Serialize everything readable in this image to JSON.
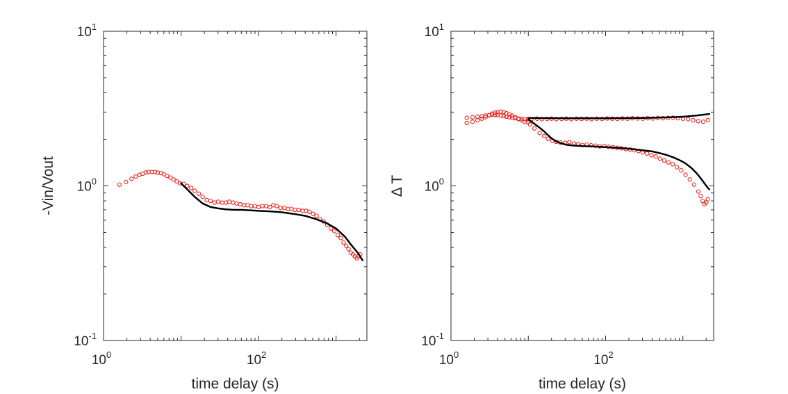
{
  "colors": {
    "marker": "#e8231f",
    "fit": "#000000",
    "axes": "#262626"
  },
  "chart_data": [
    {
      "type": "scatter",
      "xlabel": "time delay (s)",
      "ylabel": "-Vin/Vout",
      "xscale": "log",
      "yscale": "log",
      "xlim": [
        1,
        2500
      ],
      "ylim": [
        0.1,
        10
      ],
      "x_ticks": [
        {
          "base": "10",
          "exp": "0",
          "value": 1
        },
        {
          "base": "10",
          "exp": "2",
          "value": 100
        }
      ],
      "y_ticks": [
        {
          "base": "10",
          "exp": "-1",
          "value": 0.1
        },
        {
          "base": "10",
          "exp": "0",
          "value": 1
        },
        {
          "base": "10",
          "exp": "1",
          "value": 10
        }
      ],
      "series": [
        {
          "kind": "markers",
          "x": [
            1.6,
            1.95,
            2.3,
            2.6,
            2.9,
            3.2,
            3.5,
            3.8,
            4.2,
            4.6,
            5.0,
            5.5,
            6.0,
            6.6,
            7.3,
            8.0,
            8.8,
            9.7,
            10.8,
            12.0,
            13.5,
            15,
            17,
            19,
            21.5,
            24,
            27,
            30,
            34,
            38,
            42,
            47,
            52,
            58,
            65,
            72,
            80,
            90,
            100,
            112,
            125,
            140,
            155,
            172,
            192,
            215,
            240,
            265,
            295,
            330,
            370,
            410,
            455,
            505,
            560,
            620,
            690,
            770,
            860,
            950,
            1050,
            1150,
            1250,
            1350,
            1450,
            1550,
            1650,
            1750,
            1850,
            1950,
            2050
          ],
          "y": [
            1.02,
            1.06,
            1.11,
            1.15,
            1.18,
            1.2,
            1.22,
            1.23,
            1.23,
            1.23,
            1.22,
            1.21,
            1.19,
            1.16,
            1.13,
            1.1,
            1.07,
            1.04,
            1.03,
            1.0,
            0.97,
            0.93,
            0.89,
            0.85,
            0.81,
            0.8,
            0.78,
            0.79,
            0.78,
            0.78,
            0.79,
            0.78,
            0.77,
            0.76,
            0.75,
            0.75,
            0.74,
            0.74,
            0.73,
            0.74,
            0.74,
            0.73,
            0.75,
            0.74,
            0.72,
            0.72,
            0.71,
            0.71,
            0.7,
            0.7,
            0.69,
            0.69,
            0.68,
            0.66,
            0.64,
            0.61,
            0.59,
            0.56,
            0.53,
            0.51,
            0.48,
            0.46,
            0.43,
            0.41,
            0.39,
            0.37,
            0.36,
            0.35,
            0.34,
            0.35,
            0.36
          ]
        },
        {
          "kind": "line",
          "x": [
            10,
            12,
            15,
            19,
            24,
            30,
            38,
            48,
            60,
            80,
            100,
            140,
            200,
            280,
            400,
            550,
            750,
            1000,
            1300,
            1600,
            1900,
            2200
          ],
          "y": [
            1.04,
            0.95,
            0.85,
            0.77,
            0.73,
            0.715,
            0.705,
            0.7,
            0.7,
            0.695,
            0.69,
            0.685,
            0.675,
            0.66,
            0.64,
            0.61,
            0.575,
            0.53,
            0.47,
            0.41,
            0.37,
            0.33
          ]
        }
      ]
    },
    {
      "type": "scatter",
      "xlabel": "time delay (s)",
      "ylabel": "Δ T",
      "xscale": "log",
      "yscale": "log",
      "xlim": [
        1,
        2500
      ],
      "ylim": [
        0.1,
        10
      ],
      "x_ticks": [
        {
          "base": "10",
          "exp": "0",
          "value": 1
        },
        {
          "base": "10",
          "exp": "2",
          "value": 100
        }
      ],
      "y_ticks": [
        {
          "base": "10",
          "exp": "-1",
          "value": 0.1
        },
        {
          "base": "10",
          "exp": "0",
          "value": 1
        },
        {
          "base": "10",
          "exp": "1",
          "value": 10
        }
      ],
      "series": [
        {
          "kind": "markers",
          "x": [
            1.6,
            1.9,
            2.2,
            2.5,
            2.8,
            3.1,
            3.4,
            3.7,
            4.0,
            4.4,
            4.8,
            5.2,
            5.7,
            6.2,
            6.8,
            7.5,
            8.2,
            9.0,
            9.9,
            1.6,
            1.9,
            2.2,
            2.5,
            2.8,
            3.1,
            3.4,
            3.7,
            4.0,
            4.4,
            4.8,
            5.2,
            5.7,
            6.2,
            6.8,
            7.5,
            8.2,
            9.0,
            9.9
          ],
          "y": [
            2.55,
            2.6,
            2.66,
            2.72,
            2.78,
            2.86,
            2.93,
            2.98,
            3.0,
            3.02,
            3.0,
            2.95,
            2.9,
            2.85,
            2.78,
            2.7,
            2.65,
            2.6,
            2.58,
            2.75,
            2.78,
            2.8,
            2.82,
            2.85,
            2.87,
            2.88,
            2.88,
            2.87,
            2.85,
            2.83,
            2.8,
            2.78,
            2.76,
            2.74,
            2.72,
            2.72,
            2.7,
            2.7
          ]
        },
        {
          "kind": "markers",
          "x": [
            11,
            13,
            15,
            17.5,
            20,
            23,
            27,
            31,
            36,
            42,
            49,
            57,
            66,
            77,
            90,
            105,
            122,
            142,
            165,
            192,
            223,
            260,
            302,
            351,
            408,
            474,
            551,
            640,
            744,
            865,
            1005,
            1168,
            1357,
            1577,
            1833,
            2100
          ],
          "y": [
            2.7,
            2.72,
            2.7,
            2.71,
            2.72,
            2.7,
            2.71,
            2.72,
            2.7,
            2.72,
            2.71,
            2.72,
            2.7,
            2.72,
            2.71,
            2.73,
            2.72,
            2.71,
            2.73,
            2.72,
            2.74,
            2.73,
            2.72,
            2.74,
            2.73,
            2.75,
            2.74,
            2.75,
            2.76,
            2.74,
            2.72,
            2.7,
            2.66,
            2.62,
            2.6,
            2.66
          ]
        },
        {
          "kind": "markers",
          "x": [
            10.5,
            12,
            14,
            16,
            18,
            20.5,
            23,
            26,
            30,
            34,
            39,
            44,
            50,
            57,
            65,
            74,
            84,
            96,
            109,
            124,
            141,
            160,
            182,
            207,
            235,
            267,
            303,
            344,
            391,
            444,
            504,
            572,
            650,
            738,
            838,
            952,
            1081,
            1228,
            1394,
            1583,
            1700,
            1800,
            1900,
            2000,
            2100
          ],
          "y": [
            2.5,
            2.35,
            2.2,
            2.1,
            2.02,
            1.96,
            1.93,
            1.91,
            1.9,
            1.92,
            1.88,
            1.86,
            1.84,
            1.85,
            1.83,
            1.82,
            1.8,
            1.81,
            1.79,
            1.78,
            1.76,
            1.75,
            1.73,
            1.72,
            1.7,
            1.68,
            1.65,
            1.62,
            1.58,
            1.55,
            1.5,
            1.46,
            1.42,
            1.38,
            1.32,
            1.26,
            1.18,
            1.1,
            1.02,
            0.92,
            0.86,
            0.8,
            0.76,
            0.78,
            0.82
          ]
        },
        {
          "kind": "line",
          "x": [
            10,
            30,
            100,
            300,
            600,
            1000,
            1500,
            2200
          ],
          "y": [
            2.75,
            2.74,
            2.74,
            2.75,
            2.77,
            2.8,
            2.85,
            2.92
          ]
        },
        {
          "kind": "line",
          "x": [
            10,
            12,
            14,
            16,
            18,
            20,
            23,
            27,
            32,
            40,
            50,
            70,
            100,
            150,
            220,
            300,
            400,
            500,
            600,
            700,
            800,
            950,
            1100,
            1300,
            1500,
            1700,
            1900,
            2100,
            2200
          ],
          "y": [
            2.7,
            2.52,
            2.38,
            2.25,
            2.13,
            2.03,
            1.94,
            1.88,
            1.84,
            1.82,
            1.81,
            1.8,
            1.78,
            1.76,
            1.73,
            1.7,
            1.67,
            1.63,
            1.59,
            1.55,
            1.51,
            1.45,
            1.39,
            1.3,
            1.21,
            1.12,
            1.04,
            0.97,
            0.95
          ]
        }
      ]
    }
  ]
}
